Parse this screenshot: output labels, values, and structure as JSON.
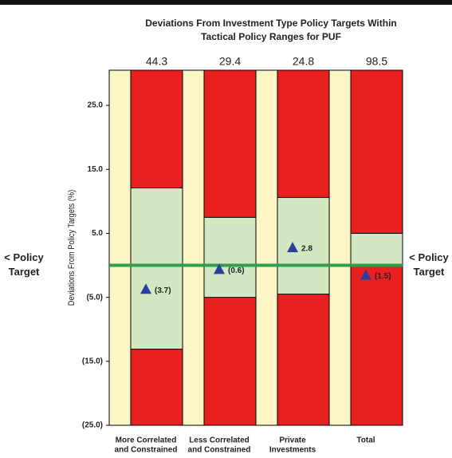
{
  "chart_data": {
    "type": "range-bar",
    "title": [
      "Deviations From Investment Type Policy Targets Within",
      "Tactical Policy Ranges for PUF"
    ],
    "ylabel": "Deviations From Policy Targets (%)",
    "categories": [
      [
        "More Correlated",
        "and Constrained"
      ],
      [
        "Less Correlated",
        "and Constrained"
      ],
      [
        "Private",
        "Investments"
      ],
      [
        "Total",
        ""
      ]
    ],
    "top_labels": [
      44.3,
      29.4,
      24.8,
      98.5
    ],
    "range_top": [
      12.1,
      7.5,
      10.6,
      5
    ],
    "range_bottom": [
      -13.1,
      -5,
      -4.5,
      0
    ],
    "values": [
      -3.7,
      -0.6,
      2.8,
      -1.5
    ],
    "value_labels": [
      "(3.7)",
      "(0.6)",
      "2.8",
      "(1.5)"
    ],
    "target": 0,
    "target_label": [
      "< Policy",
      "Target"
    ],
    "ylim": [
      -25,
      30.5
    ],
    "yticks": [
      {
        "value": 25,
        "label": "25.0"
      },
      {
        "value": 15,
        "label": "15.0"
      },
      {
        "value": 5,
        "label": "5.0"
      },
      {
        "value": -5,
        "label": "(5.0)"
      },
      {
        "value": -15,
        "label": "(15.0)"
      },
      {
        "value": -25,
        "label": "(25.0)"
      }
    ],
    "colors": {
      "bar": "#e8201f",
      "range": "#d3e8c2",
      "background": "#fdf5c6",
      "marker": "#2a3f9c",
      "target": "#2e9e4f"
    }
  }
}
